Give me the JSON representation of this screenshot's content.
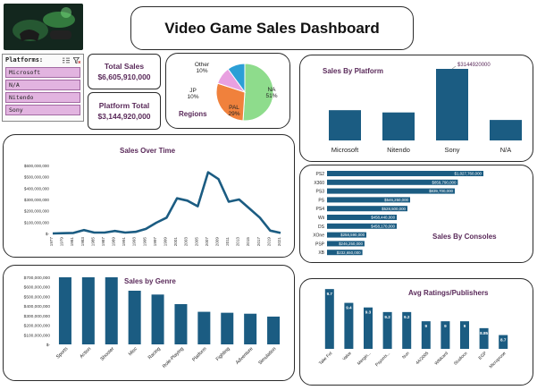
{
  "title": "Video Game Sales Dashboard",
  "slicer": {
    "label": "Platforms:",
    "items": [
      "Microsoft",
      "N/A",
      "Nitendo",
      "Sony"
    ]
  },
  "kpis": {
    "total_label": "Total Sales",
    "total_value": "$6,605,910,000",
    "platform_label": "Platform Total",
    "platform_value": "$3,144,920,000"
  },
  "colors": {
    "bar": "#1b5c82",
    "accent_text": "#5a2a5a",
    "slicer_fill": "#e2b4e0",
    "pie_na": "#8edc8c",
    "pie_pal": "#f0813c",
    "pie_jp": "#e8a0e0",
    "pie_other": "#2c9fd6"
  },
  "charts": [
    {
      "id": "regions",
      "type": "pie",
      "title": "Regions",
      "slices": [
        {
          "label": "NA",
          "value": 51,
          "text": "51%",
          "color": "#8edc8c"
        },
        {
          "label": "PAL",
          "value": 29,
          "text": "29%",
          "color": "#f0813c"
        },
        {
          "label": "JP",
          "value": 10,
          "text": "10%",
          "color": "#e8a0e0"
        },
        {
          "label": "Other",
          "value": 10,
          "text": "10%",
          "color": "#2c9fd6"
        }
      ]
    },
    {
      "id": "platform",
      "type": "bar",
      "title": "Sales By Platform",
      "categories": [
        "Microsoft",
        "Nitendo",
        "Sony",
        "N/A"
      ],
      "values": [
        1330000000,
        1230000000,
        3144920000,
        900000000
      ],
      "data_label": {
        "index": 2,
        "text": "$3144920000"
      }
    },
    {
      "id": "time",
      "type": "line",
      "title": "Sales Over Time",
      "x": [
        "1977",
        "1979",
        "1981",
        "1983",
        "1985",
        "1987",
        "1989",
        "1991",
        "1993",
        "1995",
        "1997",
        "1999",
        "2001",
        "2003",
        "2005",
        "2007",
        "2009",
        "2011",
        "2013",
        "2015",
        "2017",
        "2019",
        "2021"
      ],
      "values": [
        0,
        2000000,
        5000000,
        30000000,
        8000000,
        8000000,
        22000000,
        8000000,
        14000000,
        40000000,
        95000000,
        140000000,
        310000000,
        290000000,
        240000000,
        540000000,
        480000000,
        280000000,
        300000000,
        220000000,
        140000000,
        25000000,
        5000000
      ],
      "yticks": [
        "$-",
        "$100,000,000",
        "$200,000,000",
        "$300,000,000",
        "$400,000,000",
        "$500,000,000",
        "$600,000,000"
      ],
      "ylim": [
        0,
        600000000
      ]
    },
    {
      "id": "consoles",
      "type": "bar-horizontal",
      "title": "Sales By Consoles",
      "categories": [
        "PS2",
        "X360",
        "PS3",
        "PS",
        "PS4",
        "Wii",
        "DS",
        "XOne",
        "PSP",
        "XB"
      ],
      "values": [
        1027760000,
        859790000,
        839700000,
        546250000,
        528500000,
        458440000,
        458170000,
        258590000,
        246250000,
        232650000
      ],
      "labels": [
        "$1,027,760,000",
        "$859,790,000",
        "$839,700,000",
        "$546,250,000",
        "$528,500,000",
        "$458,440,000",
        "$458,170,000",
        "$258,590,000",
        "$246,250,000",
        "$232,650,000"
      ]
    },
    {
      "id": "genre",
      "type": "bar",
      "title": "Sales by Genre",
      "categories": [
        "Sports",
        "Action",
        "Shooter",
        "Misc",
        "Racing",
        "Role-Playing",
        "Platform",
        "Fighting",
        "Adventure",
        "Simulation"
      ],
      "values": [
        700000000,
        700000000,
        700000000,
        560000000,
        520000000,
        420000000,
        340000000,
        330000000,
        320000000,
        290000000
      ],
      "yticks": [
        "$-",
        "$100,000,000",
        "$200,000,000",
        "$300,000,000",
        "$400,000,000",
        "$500,000,000",
        "$600,000,000",
        "$700,000,000"
      ],
      "ylim": [
        0,
        700000000
      ]
    },
    {
      "id": "ratings",
      "type": "bar",
      "title": "Avg Ratings/Publishers",
      "categories": [
        "Take Fot",
        "Valve",
        "Mergin...",
        "Psyonix...",
        "Nun",
        "4A/2005",
        "Wildcard",
        "Studioco",
        "EGP",
        "Microprose"
      ],
      "values": [
        9.7,
        9.4,
        9.3,
        9.2,
        9.2,
        9,
        9,
        9,
        8.85,
        8.7
      ],
      "labels": [
        "9.7",
        "9.4",
        "9.3",
        "9.2",
        "9.2",
        "9",
        "9",
        "9",
        "8.85",
        "8.7"
      ],
      "ylim": [
        8.4,
        9.8
      ]
    }
  ]
}
